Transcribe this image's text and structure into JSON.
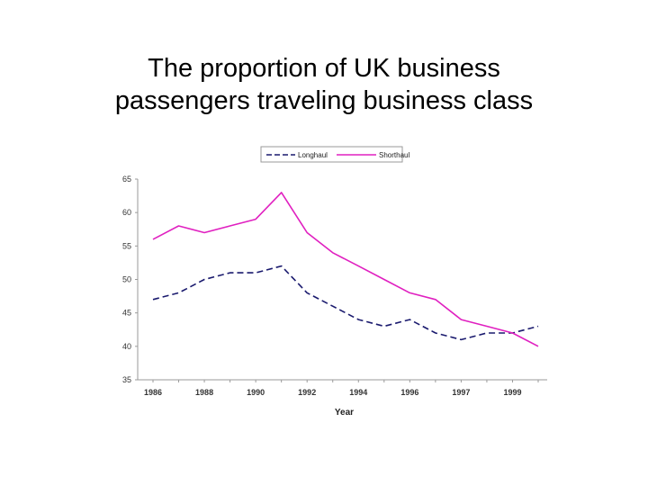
{
  "title_line1": "The proportion of UK business",
  "title_line2": "passengers traveling business class",
  "chart_data": {
    "type": "line",
    "title": "The proportion of UK business passengers traveling business class",
    "xlabel": "Year",
    "ylabel": "",
    "ylim": [
      35,
      65
    ],
    "yticks": [
      65,
      60,
      55,
      50,
      45,
      40,
      35
    ],
    "grid": false,
    "legend_position": "top-right",
    "x_tick_labels": [
      "1986",
      "1988",
      "1990",
      "1992",
      "1994",
      "1996",
      "1997",
      "1999"
    ],
    "x_tick_positions": [
      0,
      2,
      4,
      6,
      8,
      10,
      12,
      14
    ],
    "x": [
      0,
      1,
      2,
      3,
      4,
      5,
      6,
      7,
      8,
      9,
      10,
      11,
      12,
      13,
      14,
      15
    ],
    "x_range": [
      0,
      16
    ],
    "series": [
      {
        "name": "Longhaul",
        "color": "#1a1a6e",
        "style": "dashed",
        "values": [
          47,
          48,
          50,
          51,
          51,
          52,
          48,
          46,
          44,
          43,
          44,
          42,
          41,
          42,
          42,
          43
        ]
      },
      {
        "name": "Shorthaul",
        "color": "#e020c0",
        "style": "solid",
        "values": [
          56,
          58,
          57,
          58,
          59,
          63,
          57,
          54,
          52,
          50,
          48,
          47,
          44,
          43,
          42,
          40
        ]
      }
    ]
  }
}
